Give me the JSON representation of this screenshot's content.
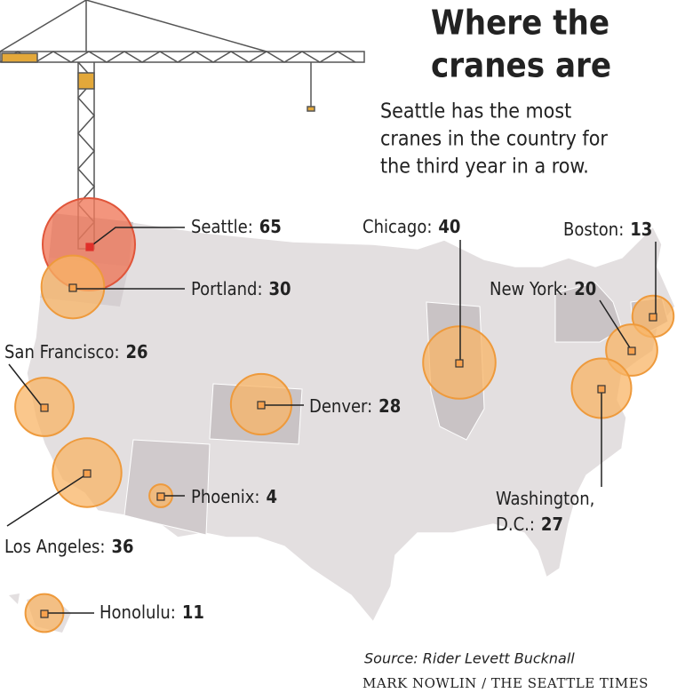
{
  "header": {
    "title_lines": [
      "Where the",
      "cranes are"
    ],
    "subtitle_lines": [
      "Seattle has the most",
      "cranes in the country for",
      "the third year in a row."
    ]
  },
  "cities": [
    {
      "label_lines": [
        "Seattle:"
      ],
      "value": 65
    },
    {
      "label_lines": [
        "Portland:"
      ],
      "value": 30
    },
    {
      "label_lines": [
        "San Francisco:"
      ],
      "value": 26
    },
    {
      "label_lines": [
        "Los Angeles:"
      ],
      "value": 36
    },
    {
      "label_lines": [
        "Phoenix:"
      ],
      "value": 4
    },
    {
      "label_lines": [
        "Denver:"
      ],
      "value": 28
    },
    {
      "label_lines": [
        "Chicago:"
      ],
      "value": 40
    },
    {
      "label_lines": [
        "Boston:"
      ],
      "value": 13
    },
    {
      "label_lines": [
        "New York:"
      ],
      "value": 20
    },
    {
      "label_lines": [
        "Washington,",
        "D.C.:"
      ],
      "value": 27
    },
    {
      "label_lines": [
        "Honolulu:"
      ],
      "value": 11
    }
  ],
  "footer": {
    "source": "Source: Rider Levett Bucknall",
    "credit": "MARK NOWLIN / THE SEATTLE TIMES"
  }
}
